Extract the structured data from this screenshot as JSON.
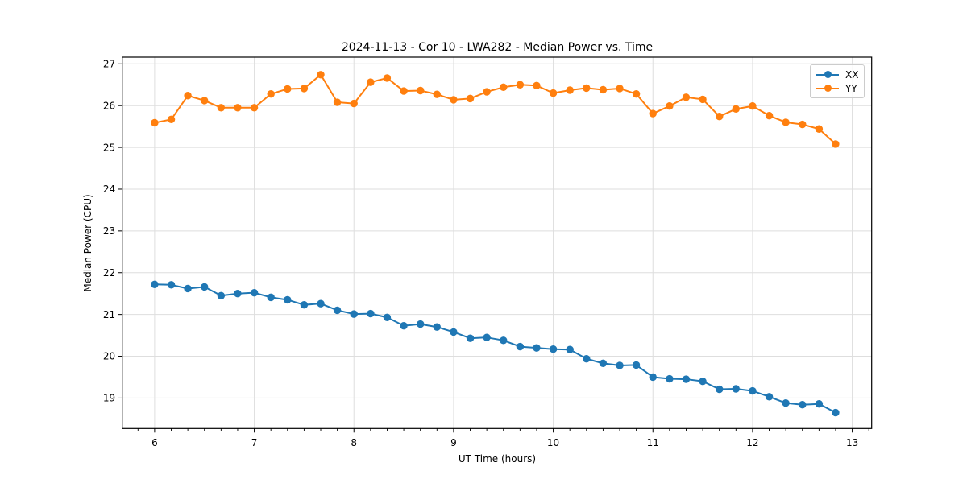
{
  "chart_data": {
    "type": "line",
    "title": "2024-11-13 - Cor 10 - LWA282 - Median Power vs. Time",
    "xlabel": "UT Time (hours)",
    "ylabel": "Median Power (CPU)",
    "xlim": [
      5.675,
      13.195
    ],
    "ylim": [
      18.27,
      27.16
    ],
    "xticks": [
      6,
      7,
      8,
      9,
      10,
      11,
      12,
      13
    ],
    "yticks": [
      19,
      20,
      21,
      22,
      23,
      24,
      25,
      26,
      27
    ],
    "x_minor_ticks_per_hour": 6,
    "grid": true,
    "grid_color": "#dedede",
    "legend_position": "upper right",
    "x": [
      6.0,
      6.167,
      6.333,
      6.5,
      6.667,
      6.833,
      7.0,
      7.167,
      7.333,
      7.5,
      7.667,
      7.833,
      8.0,
      8.167,
      8.333,
      8.5,
      8.667,
      8.833,
      9.0,
      9.167,
      9.333,
      9.5,
      9.667,
      9.833,
      10.0,
      10.167,
      10.333,
      10.5,
      10.667,
      10.833,
      11.0,
      11.167,
      11.333,
      11.5,
      11.667,
      11.833,
      12.0,
      12.167,
      12.333,
      12.5,
      12.667,
      12.833
    ],
    "series": [
      {
        "name": "XX",
        "color": "#1f77b4",
        "values": [
          21.72,
          21.71,
          21.62,
          21.66,
          21.45,
          21.5,
          21.52,
          21.41,
          21.35,
          21.23,
          21.26,
          21.1,
          21.01,
          21.02,
          20.93,
          20.73,
          20.77,
          20.7,
          20.58,
          20.43,
          20.45,
          20.38,
          20.23,
          20.2,
          20.17,
          20.16,
          19.94,
          19.83,
          19.78,
          19.79,
          19.5,
          19.46,
          19.45,
          19.4,
          19.21,
          19.22,
          19.17,
          19.03,
          18.88,
          18.84,
          18.86,
          18.65
        ]
      },
      {
        "name": "YY",
        "color": "#ff7f0e",
        "values": [
          25.59,
          25.67,
          26.24,
          26.12,
          25.95,
          25.95,
          25.95,
          26.28,
          26.4,
          26.41,
          26.74,
          26.08,
          26.05,
          26.56,
          26.66,
          26.35,
          26.36,
          26.27,
          26.14,
          26.17,
          26.33,
          26.44,
          26.5,
          26.48,
          26.3,
          26.37,
          26.42,
          26.38,
          26.41,
          26.28,
          25.81,
          25.99,
          26.2,
          26.15,
          25.74,
          25.92,
          25.99,
          25.76,
          25.6,
          25.55,
          25.44,
          25.08
        ]
      }
    ]
  }
}
